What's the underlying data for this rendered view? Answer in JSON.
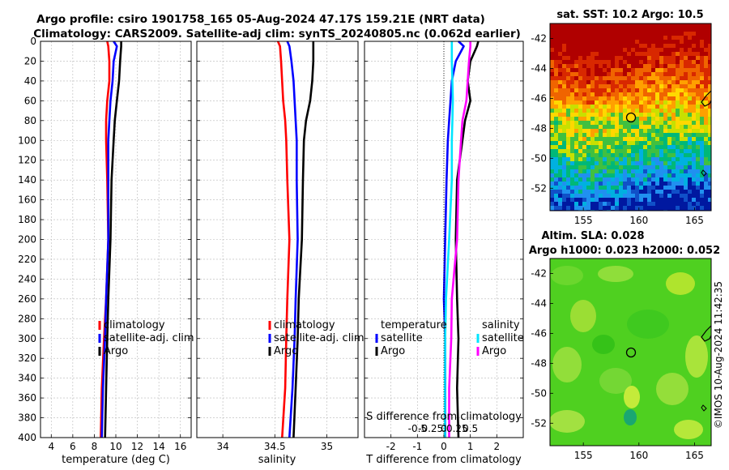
{
  "title_line1": "Argo profile: csiro 1901758_165 05-Aug-2024 47.17S 159.21E (NRT data)",
  "title_line2": "Climatology: CARS2009. Satellite-adj clim: synTS_20240805.nc (0.062d earlier)",
  "sst_title": "sat. SST: 10.2 Argo: 10.5",
  "sla_title1": "Altim. SLA: 0.028",
  "sla_title2": "Argo h1000: 0.023 h2000: 0.052",
  "watermark": "©IMOS 10-Aug-2024 11:42:35",
  "colors": {
    "climatology": "#ff0000",
    "satellite": "#0000ff",
    "argo": "#000000",
    "sat_diff_s": "#00e5ff",
    "argo_diff_s": "#ff00ff"
  },
  "chart_data": [
    {
      "type": "line",
      "name": "temperature",
      "xlabel": "temperature (deg C)",
      "ylabel": "",
      "xlim": [
        3,
        17
      ],
      "ylim": [
        400,
        0
      ],
      "xticks": [
        "4",
        "6",
        "8",
        "10",
        "12",
        "14",
        "16"
      ],
      "yticks": [
        "0",
        "20",
        "40",
        "60",
        "80",
        "100",
        "120",
        "140",
        "160",
        "180",
        "200",
        "220",
        "240",
        "260",
        "280",
        "300",
        "320",
        "340",
        "360",
        "380",
        "400"
      ],
      "grid": true,
      "legend": [
        "climatology",
        "satellite-adj. clim",
        "Argo"
      ],
      "depth": [
        0,
        5,
        20,
        40,
        60,
        80,
        100,
        140,
        200,
        260,
        300,
        350,
        400
      ],
      "series": [
        {
          "name": "climatology",
          "values": [
            9.2,
            9.3,
            9.4,
            9.4,
            9.2,
            9.1,
            9.1,
            9.2,
            9.3,
            9.1,
            8.9,
            8.7,
            8.6
          ]
        },
        {
          "name": "satellite-adj. clim",
          "values": [
            9.8,
            10.1,
            9.8,
            9.7,
            9.5,
            9.4,
            9.3,
            9.3,
            9.3,
            9.1,
            9.0,
            8.8,
            8.7
          ]
        },
        {
          "name": "Argo",
          "values": [
            10.5,
            10.5,
            10.4,
            10.3,
            10.1,
            9.9,
            9.8,
            9.6,
            9.5,
            9.3,
            9.2,
            9.1,
            9.0
          ]
        }
      ]
    },
    {
      "type": "line",
      "name": "salinity",
      "xlabel": "salinity",
      "xlim": [
        33.75,
        35.3
      ],
      "ylim": [
        400,
        0
      ],
      "xticks": [
        "34",
        "34.5",
        "35"
      ],
      "grid": true,
      "legend": [
        "climatology",
        "satellite-adj. clim",
        "Argo"
      ],
      "depth": [
        0,
        5,
        20,
        40,
        60,
        80,
        100,
        140,
        200,
        260,
        300,
        350,
        400
      ],
      "series": [
        {
          "name": "climatology",
          "values": [
            34.53,
            34.55,
            34.56,
            34.57,
            34.58,
            34.6,
            34.61,
            34.62,
            34.64,
            34.62,
            34.61,
            34.6,
            34.57
          ]
        },
        {
          "name": "satellite-adj. clim",
          "values": [
            34.62,
            34.64,
            34.66,
            34.68,
            34.69,
            34.7,
            34.71,
            34.71,
            34.72,
            34.7,
            34.69,
            34.67,
            34.64
          ]
        },
        {
          "name": "Argo",
          "values": [
            34.87,
            34.87,
            34.87,
            34.86,
            34.84,
            34.8,
            34.78,
            34.77,
            34.76,
            34.73,
            34.72,
            34.7,
            34.68
          ]
        }
      ]
    },
    {
      "type": "line",
      "name": "difference from climatology",
      "xlabel": "T difference from climatology",
      "top_xlabel": "S difference from climatology",
      "xlim": [
        -3,
        3
      ],
      "ylim": [
        400,
        0
      ],
      "xticks": [
        "-2",
        "-1",
        "0",
        "1",
        "2"
      ],
      "top_xticks": [
        "-0.5",
        "-0.25",
        "0",
        "0.25",
        "0.5"
      ],
      "grid": true,
      "legend_left": {
        "title": "temperature",
        "items": [
          "satellite",
          "Argo"
        ]
      },
      "legend_right": {
        "title": "salinity",
        "items": [
          "satellite",
          "Argo"
        ]
      },
      "depth": [
        0,
        5,
        20,
        40,
        60,
        80,
        100,
        140,
        200,
        260,
        300,
        350,
        400
      ],
      "series": [
        {
          "name": "T satellite",
          "values": [
            0.55,
            0.75,
            0.45,
            0.3,
            0.25,
            0.2,
            0.15,
            0.1,
            0.05,
            0.0,
            0.05,
            0.05,
            0.05
          ]
        },
        {
          "name": "T Argo",
          "values": [
            1.3,
            1.25,
            1.0,
            0.9,
            1.0,
            0.8,
            0.7,
            0.5,
            0.45,
            0.5,
            0.55,
            0.5,
            0.55
          ]
        },
        {
          "name": "S satellite",
          "values": [
            0.3,
            0.3,
            0.3,
            0.32,
            0.34,
            0.32,
            0.3,
            0.3,
            0.2,
            0.08,
            0.05,
            0.04,
            0.04
          ]
        },
        {
          "name": "S Argo",
          "values": [
            1.0,
            1.0,
            0.95,
            0.9,
            0.85,
            0.7,
            0.65,
            0.55,
            0.5,
            0.3,
            0.28,
            0.2,
            0.2
          ]
        }
      ]
    }
  ],
  "maps": [
    {
      "name": "sst",
      "xticks": [
        "155",
        "160",
        "165"
      ],
      "yticks": [
        "-42",
        "-44",
        "-46",
        "-48",
        "-50",
        "-52"
      ],
      "xlim": [
        152,
        166.5
      ],
      "ylim": [
        -53.5,
        -41
      ]
    },
    {
      "name": "sla",
      "xticks": [
        "155",
        "160",
        "165"
      ],
      "yticks": [
        "-42",
        "-44",
        "-46",
        "-48",
        "-50",
        "-52"
      ],
      "xlim": [
        152,
        166.5
      ],
      "ylim": [
        -53.5,
        -41
      ]
    }
  ]
}
